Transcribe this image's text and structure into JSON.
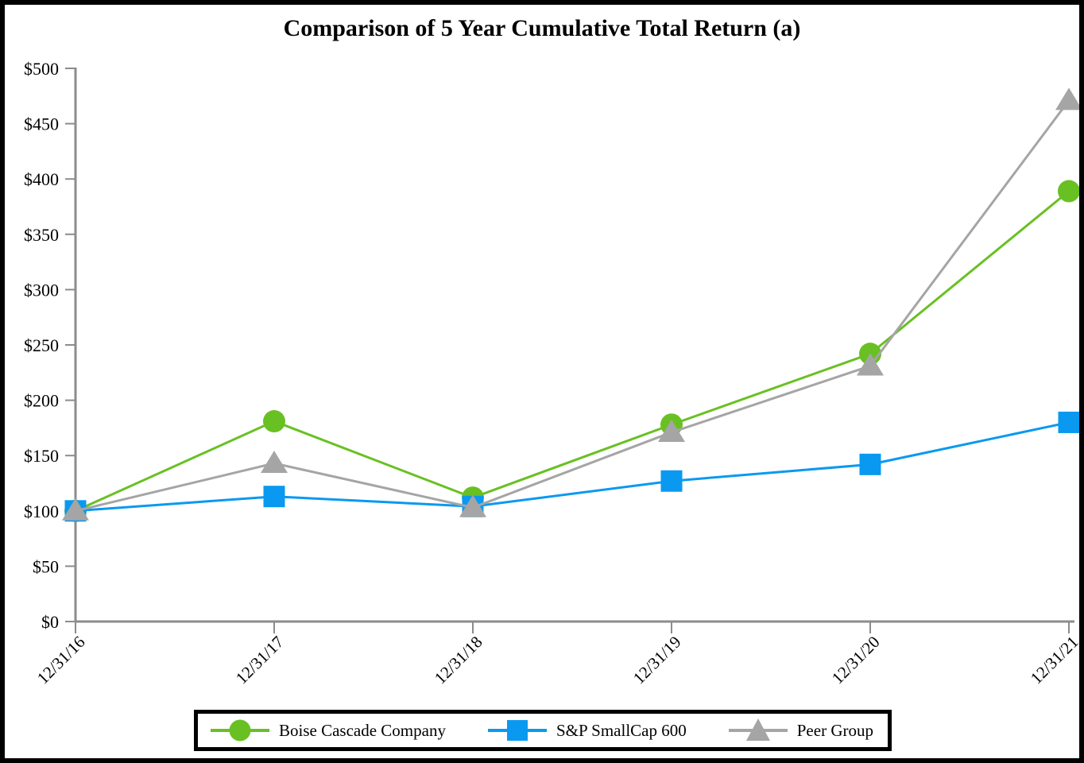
{
  "chart_data": {
    "type": "line",
    "title": "Comparison of 5 Year Cumulative Total Return (a)",
    "categories": [
      "12/31/16",
      "12/31/17",
      "12/31/18",
      "12/31/19",
      "12/31/20",
      "12/31/21"
    ],
    "series": [
      {
        "name": "Boise Cascade Company",
        "marker": "circle",
        "color": "#69C023",
        "values": [
          100,
          181,
          112,
          178,
          242,
          389
        ]
      },
      {
        "name": "S&P SmallCap 600",
        "marker": "square",
        "color": "#0A99F0",
        "values": [
          100,
          113,
          104,
          127,
          142,
          180
        ]
      },
      {
        "name": "Peer Group",
        "marker": "triangle",
        "color": "#A5A5A5",
        "values": [
          100,
          143,
          103,
          171,
          231,
          471
        ]
      }
    ],
    "xlabel": "",
    "ylabel": "",
    "ylim": [
      0,
      500
    ],
    "ytick_step": 50,
    "ytick_prefix": "$",
    "grid": false,
    "legend_position": "bottom",
    "axis_color": "#8C8C8C",
    "text_color": "#000000",
    "background_color": "#FFFFFF",
    "border_color": "#000000"
  }
}
